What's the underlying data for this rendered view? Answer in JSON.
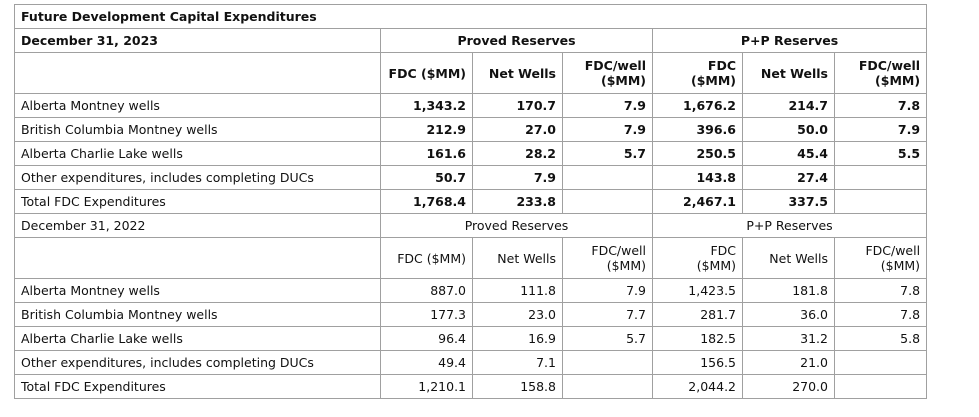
{
  "title": "Future Development Capital Expenditures",
  "sections": [
    {
      "date": "December 31, 2023",
      "group_headers": [
        "Proved Reserves",
        "P+P Reserves"
      ],
      "column_headers": [
        "FDC ($MM)",
        "Net Wells",
        "FDC/well ($MM)",
        "FDC ($MM)",
        "Net Wells",
        "FDC/well ($MM)"
      ],
      "rows": [
        {
          "label": "Alberta Montney wells",
          "values": [
            "1,343.2",
            "170.7",
            "7.9",
            "1,676.2",
            "214.7",
            "7.8"
          ]
        },
        {
          "label": "British Columbia Montney wells",
          "values": [
            "212.9",
            "27.0",
            "7.9",
            "396.6",
            "50.0",
            "7.9"
          ]
        },
        {
          "label": "Alberta Charlie Lake wells",
          "values": [
            "161.6",
            "28.2",
            "5.7",
            "250.5",
            "45.4",
            "5.5"
          ]
        },
        {
          "label": "Other expenditures, includes completing DUCs",
          "values": [
            "50.7",
            "7.9",
            null,
            "143.8",
            "27.4",
            null
          ]
        },
        {
          "label": "Total FDC Expenditures",
          "values": [
            "1,768.4",
            "233.8",
            null,
            "2,467.1",
            "337.5",
            null
          ]
        }
      ]
    },
    {
      "date": "December 31, 2022",
      "group_headers": [
        "Proved Reserves",
        "P+P Reserves"
      ],
      "column_headers": [
        "FDC ($MM)",
        "Net Wells",
        "FDC/well ($MM)",
        "FDC ($MM)",
        "Net Wells",
        "FDC/well ($MM)"
      ],
      "rows": [
        {
          "label": "Alberta Montney wells",
          "values": [
            "887.0",
            "111.8",
            "7.9",
            "1,423.5",
            "181.8",
            "7.8"
          ]
        },
        {
          "label": "British Columbia Montney wells",
          "values": [
            "177.3",
            "23.0",
            "7.7",
            "281.7",
            "36.0",
            "7.8"
          ]
        },
        {
          "label": "Alberta Charlie Lake wells",
          "values": [
            "96.4",
            "16.9",
            "5.7",
            "182.5",
            "31.2",
            "5.8"
          ]
        },
        {
          "label": "Other expenditures, includes completing DUCs",
          "values": [
            "49.4",
            "7.1",
            null,
            "156.5",
            "21.0",
            null
          ]
        },
        {
          "label": "Total FDC Expenditures",
          "values": [
            "1,210.1",
            "158.8",
            null,
            "2,044.2",
            "270.0",
            null
          ]
        }
      ]
    }
  ]
}
